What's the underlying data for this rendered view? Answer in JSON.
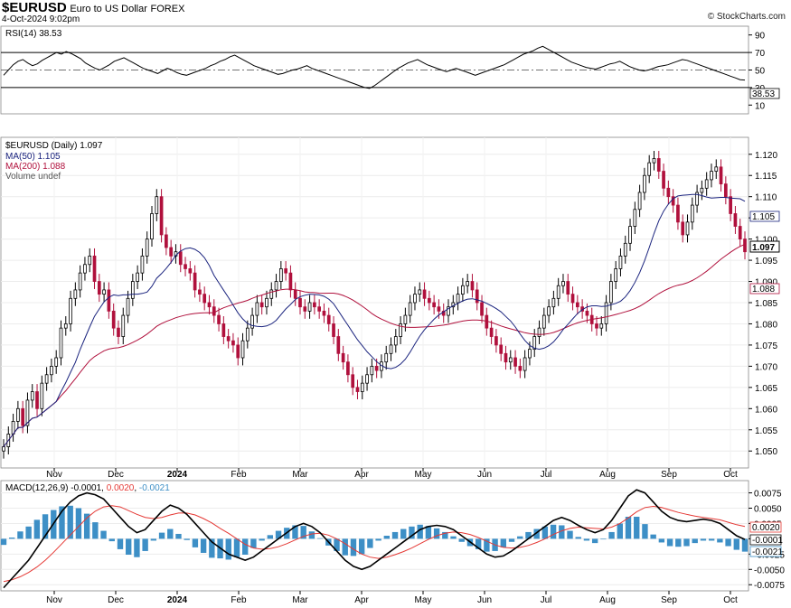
{
  "header": {
    "symbol": "$EURUSD",
    "name": "Euro to US Dollar",
    "exchange": "FOREX",
    "date": "4-Oct-2024 9:02pm",
    "credit": "© StockCharts.com"
  },
  "colors": {
    "up": "#000000",
    "down": "#b0103c",
    "ma50": "#1a237e",
    "ma200": "#b0103c",
    "macd_hist": "#3d8fc6",
    "signal": "#e53935"
  },
  "chart_data": [
    {
      "type": "line",
      "panel": "rsi",
      "title": "RSI(14) 38.53",
      "last_label": "38.53",
      "yticks": [
        90,
        70,
        50,
        30,
        10
      ],
      "ylim": [
        0,
        100
      ],
      "levels": [
        70,
        30
      ],
      "midline": 50,
      "series": [
        {
          "name": "RSI(14)",
          "values": [
            44,
            50,
            56,
            60,
            62,
            58,
            55,
            57,
            61,
            64,
            67,
            70,
            68,
            71,
            69,
            66,
            63,
            58,
            55,
            52,
            50,
            53,
            56,
            60,
            62,
            64,
            61,
            58,
            55,
            52,
            50,
            48,
            46,
            49,
            52,
            50,
            47,
            45,
            44,
            46,
            48,
            50,
            52,
            55,
            57,
            60,
            62,
            65,
            67,
            64,
            61,
            58,
            55,
            53,
            51,
            49,
            47,
            45,
            46,
            48,
            50,
            51,
            53,
            55,
            52,
            50,
            48,
            46,
            44,
            42,
            40,
            38,
            36,
            34,
            32,
            30,
            29,
            32,
            36,
            40,
            44,
            48,
            52,
            55,
            58,
            60,
            62,
            59,
            56,
            54,
            52,
            50,
            48,
            50,
            52,
            50,
            48,
            46,
            44,
            46,
            48,
            50,
            52,
            54,
            56,
            59,
            62,
            65,
            68,
            70,
            72,
            75,
            77,
            74,
            71,
            68,
            65,
            62,
            59,
            57,
            55,
            53,
            52,
            51,
            53,
            55,
            57,
            58,
            60,
            57,
            54,
            52,
            50,
            49,
            50,
            52,
            54,
            55,
            56,
            58,
            60,
            62,
            61,
            59,
            57,
            55,
            53,
            51,
            49,
            47,
            45,
            43,
            41,
            39,
            38.53
          ]
        }
      ]
    },
    {
      "type": "line",
      "panel": "price",
      "title": "$EURUSD (Daily) 1.097",
      "legend": [
        "MA(50) 1.105",
        "MA(200) 1.088",
        "Volume undef"
      ],
      "yticks": [
        1.12,
        1.115,
        1.11,
        1.105,
        1.1,
        1.095,
        1.09,
        1.085,
        1.08,
        1.075,
        1.07,
        1.065,
        1.06,
        1.055,
        1.05
      ],
      "ytick_labels": [
        "1.120",
        "1.115",
        "1.110",
        "1.105",
        "1.100",
        "1.095",
        "1.090",
        "1.085",
        "1.080",
        "1.075",
        "1.070",
        "1.065",
        "1.060",
        "1.055",
        "1.050"
      ],
      "ylim": [
        1.046,
        1.124
      ],
      "last_price": "1.097",
      "ma50_label": "1.105",
      "ma200_label": "1.088",
      "x_labels": [
        "Nov",
        "Dec",
        "2024",
        "Feb",
        "Mar",
        "Apr",
        "May",
        "Jun",
        "Jul",
        "Aug",
        "Sep",
        "Oct"
      ],
      "close": [
        1.051,
        1.054,
        1.057,
        1.06,
        1.056,
        1.062,
        1.064,
        1.06,
        1.066,
        1.068,
        1.07,
        1.072,
        1.079,
        1.08,
        1.086,
        1.088,
        1.092,
        1.094,
        1.096,
        1.09,
        1.087,
        1.088,
        1.083,
        1.079,
        1.077,
        1.082,
        1.086,
        1.09,
        1.092,
        1.096,
        1.1,
        1.106,
        1.11,
        1.101,
        1.098,
        1.096,
        1.097,
        1.094,
        1.093,
        1.092,
        1.088,
        1.087,
        1.085,
        1.084,
        1.082,
        1.08,
        1.077,
        1.076,
        1.075,
        1.072,
        1.076,
        1.079,
        1.082,
        1.085,
        1.084,
        1.086,
        1.088,
        1.09,
        1.093,
        1.092,
        1.088,
        1.086,
        1.084,
        1.083,
        1.085,
        1.084,
        1.083,
        1.082,
        1.08,
        1.077,
        1.073,
        1.071,
        1.068,
        1.065,
        1.064,
        1.066,
        1.068,
        1.07,
        1.069,
        1.071,
        1.073,
        1.075,
        1.077,
        1.08,
        1.082,
        1.085,
        1.087,
        1.088,
        1.086,
        1.085,
        1.084,
        1.083,
        1.082,
        1.084,
        1.085,
        1.087,
        1.089,
        1.09,
        1.088,
        1.085,
        1.082,
        1.079,
        1.077,
        1.075,
        1.073,
        1.071,
        1.072,
        1.07,
        1.069,
        1.072,
        1.074,
        1.077,
        1.079,
        1.082,
        1.084,
        1.086,
        1.089,
        1.09,
        1.087,
        1.085,
        1.084,
        1.083,
        1.082,
        1.08,
        1.079,
        1.08,
        1.085,
        1.09,
        1.093,
        1.096,
        1.099,
        1.103,
        1.107,
        1.111,
        1.115,
        1.118,
        1.119,
        1.116,
        1.112,
        1.11,
        1.108,
        1.104,
        1.101,
        1.104,
        1.108,
        1.111,
        1.112,
        1.114,
        1.116,
        1.117,
        1.113,
        1.11,
        1.106,
        1.103,
        1.1,
        1.097
      ]
    },
    {
      "type": "line",
      "panel": "macd",
      "title": "MACD(12,26,9) -0.0001, 0.0020, -0.0021",
      "title_parts": [
        "MACD(12,26,9)",
        "-0.0001",
        "0.0020",
        "-0.0021"
      ],
      "yticks": [
        0.0075,
        0.005,
        0.0025,
        0.0,
        -0.0025,
        -0.005,
        -0.0075
      ],
      "ytick_labels": [
        "0.0075",
        "0.0050",
        "0.0025",
        "0.0000",
        "-0.0025",
        "-0.0050",
        "-0.0075"
      ],
      "ylim": [
        -0.0085,
        0.0095
      ],
      "badges": [
        "0.0020",
        "-0.0001",
        "-0.0021"
      ],
      "x_labels": [
        "Nov",
        "Dec",
        "2024",
        "Feb",
        "Mar",
        "Apr",
        "May",
        "Jun",
        "Jul",
        "Aug",
        "Sep",
        "Oct"
      ],
      "series": [
        {
          "name": "MACD",
          "values": [
            -0.008,
            -0.0065,
            -0.005,
            -0.0035,
            -0.0015,
            0.0005,
            0.0025,
            0.0045,
            0.006,
            0.007,
            0.0075,
            0.0072,
            0.0065,
            0.005,
            0.0035,
            0.002,
            0.001,
            0.0015,
            0.003,
            0.0045,
            0.0055,
            0.005,
            0.004,
            0.0025,
            0.001,
            -0.0005,
            -0.0015,
            -0.0025,
            -0.003,
            -0.0035,
            -0.003,
            -0.002,
            -0.001,
            0.0,
            0.001,
            0.002,
            0.0025,
            0.002,
            0.001,
            -0.0005,
            -0.002,
            -0.0035,
            -0.0045,
            -0.005,
            -0.0045,
            -0.0035,
            -0.0025,
            -0.0015,
            -0.0005,
            0.0005,
            0.0015,
            0.002,
            0.0022,
            0.002,
            0.0015,
            0.0005,
            -0.0005,
            -0.0015,
            -0.0025,
            -0.003,
            -0.0028,
            -0.002,
            -0.001,
            0.0,
            0.001,
            0.002,
            0.003,
            0.0035,
            0.003,
            0.0022,
            0.0015,
            0.001,
            0.0015,
            0.003,
            0.005,
            0.007,
            0.008,
            0.0075,
            0.006,
            0.0045,
            0.0035,
            0.003,
            0.0028,
            0.003,
            0.0032,
            0.003,
            0.0025,
            0.0015,
            0.0005,
            -0.0001
          ]
        },
        {
          "name": "Signal",
          "values": [
            -0.007,
            -0.0067,
            -0.0062,
            -0.0055,
            -0.0046,
            -0.0035,
            -0.0022,
            -0.0008,
            0.0006,
            0.002,
            0.0034,
            0.0045,
            0.0052,
            0.0054,
            0.0052,
            0.0046,
            0.004,
            0.0035,
            0.0033,
            0.0035,
            0.0039,
            0.0042,
            0.0042,
            0.0039,
            0.0033,
            0.0026,
            0.0017,
            0.0009,
            0.0,
            -0.0009,
            -0.0015,
            -0.0017,
            -0.0016,
            -0.0013,
            -0.0008,
            -0.0002,
            0.0004,
            0.0008,
            0.0009,
            0.0006,
            0.0,
            -0.0008,
            -0.0017,
            -0.0025,
            -0.003,
            -0.0032,
            -0.003,
            -0.0026,
            -0.0021,
            -0.0015,
            -0.0008,
            -0.0001,
            0.0005,
            0.0009,
            0.0011,
            0.001,
            0.0007,
            0.0002,
            -0.0004,
            -0.001,
            -0.0014,
            -0.0015,
            -0.0014,
            -0.0011,
            -0.0006,
            0.0,
            0.0007,
            0.0013,
            0.0017,
            0.0019,
            0.0018,
            0.0017,
            0.0016,
            0.0019,
            0.0025,
            0.0034,
            0.0044,
            0.0051,
            0.0053,
            0.0051,
            0.0047,
            0.0043,
            0.004,
            0.0037,
            0.0035,
            0.0033,
            0.0031,
            0.0027,
            0.0023,
            0.002
          ]
        }
      ]
    }
  ]
}
